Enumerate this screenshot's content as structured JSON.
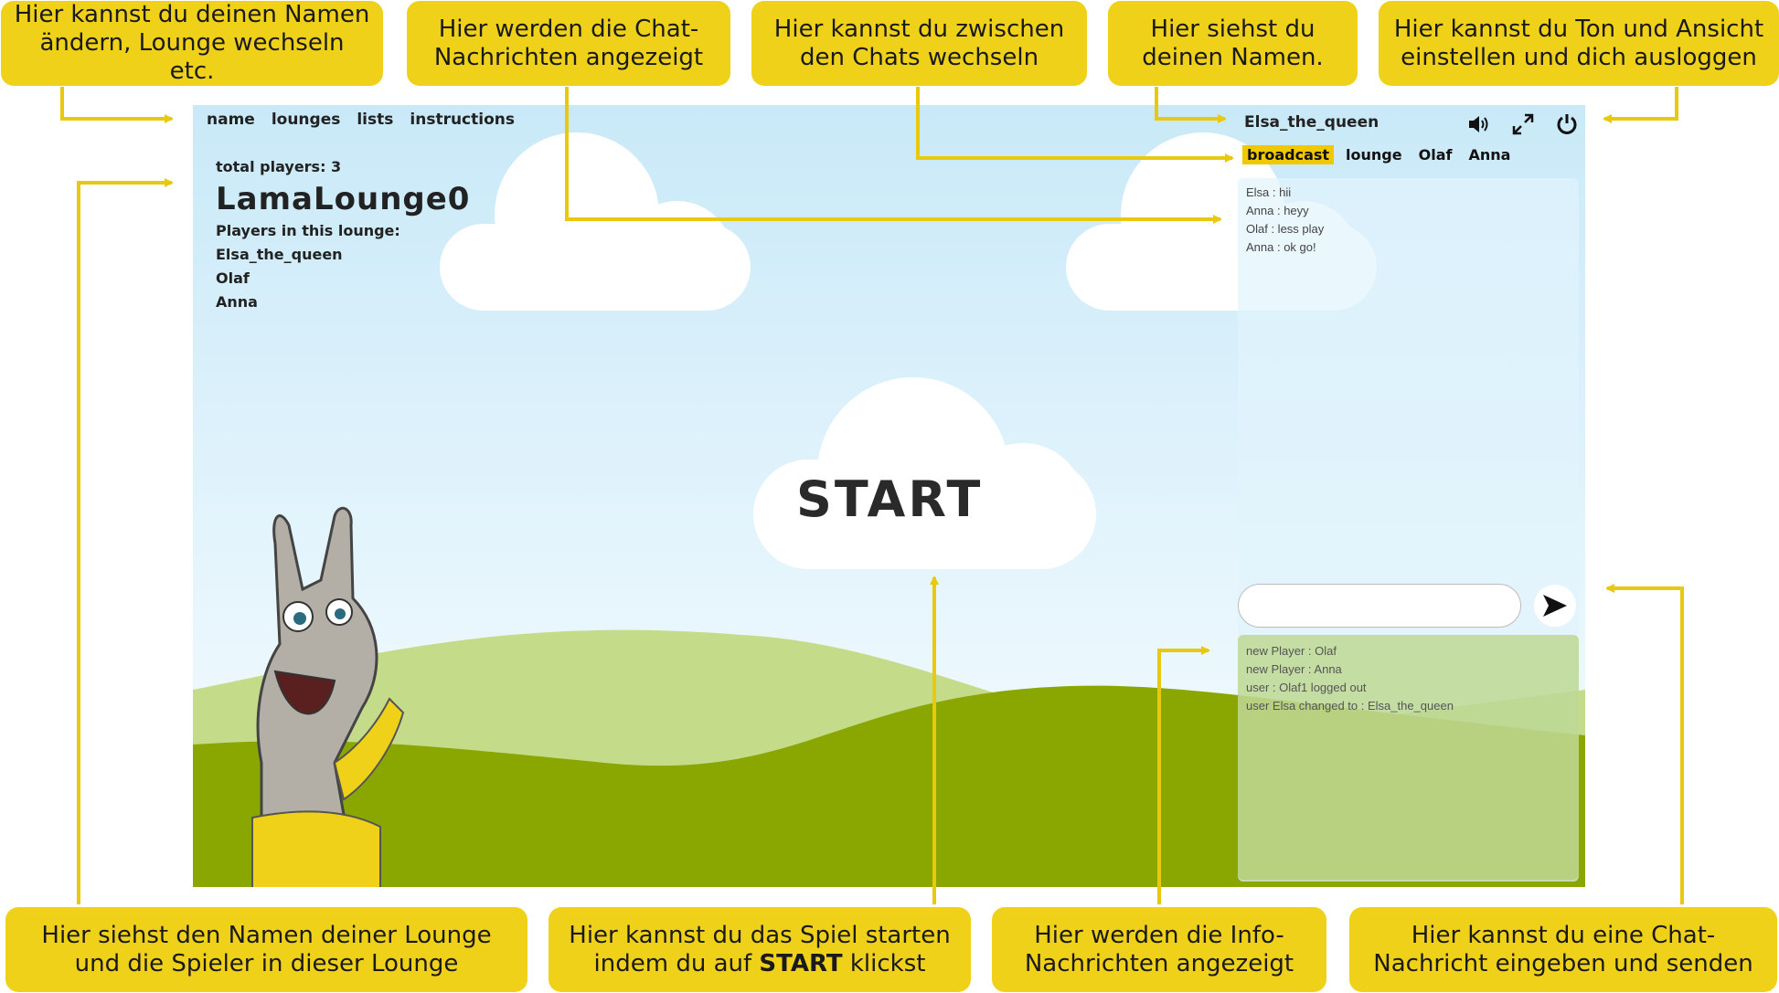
{
  "callouts": {
    "name_change": "Hier kannst du deinen Namen ändern, Lounge wechseln etc.",
    "chat_messages": "Hier werden die Chat-Nachrichten angezeigt",
    "chat_switch": "Hier kannst du zwischen den Chats wechseln",
    "own_name": "Hier siehst du deinen Namen.",
    "sound_view": "Hier kannst du Ton und Ansicht einstellen und dich ausloggen",
    "lounge_info": "Hier siehst den Namen deiner Lounge und die Spieler in dieser Lounge",
    "start_game_prefix": "Hier kannst du das Spiel  starten indem du auf",
    "start_game_bold": "START",
    "start_game_suffix": "klickst",
    "info_messages": "Hier werden die Info-Nachrichten angezeigt",
    "send_message": "Hier kannst du eine Chat-Nachricht eingeben und senden"
  },
  "nav": {
    "name": "name",
    "lounges": "lounges",
    "lists": "lists",
    "instructions": "instructions"
  },
  "lounge": {
    "total_players": "total players: 3",
    "name": "LamaLounge0",
    "players_heading": "Players in this lounge:",
    "players": [
      "Elsa_the_queen",
      "Olaf",
      "Anna"
    ]
  },
  "user": {
    "name": "Elsa_the_queen"
  },
  "icons": {
    "sound": "speaker-icon",
    "fullscreen": "expand-icon",
    "logout": "power-icon",
    "send": "send-arrow-icon"
  },
  "chat": {
    "tabs": [
      "broadcast",
      "lounge",
      "Olaf",
      "Anna"
    ],
    "active_tab": "broadcast",
    "messages": [
      "Elsa : hii",
      "Anna : heyy",
      "Olaf : less play",
      "Anna : ok go!"
    ],
    "input_value": "",
    "input_placeholder": ""
  },
  "info": {
    "messages": [
      "new Player : Olaf",
      "new Player : Anna",
      "user : Olaf1 logged out",
      "user Elsa changed to : Elsa_the_queen"
    ]
  },
  "start_label": "START",
  "colors": {
    "callout": "#f0d11a",
    "active_tab": "#f0c800",
    "grass_dark": "#8aa600",
    "grass_light": "#c4dc8a"
  }
}
